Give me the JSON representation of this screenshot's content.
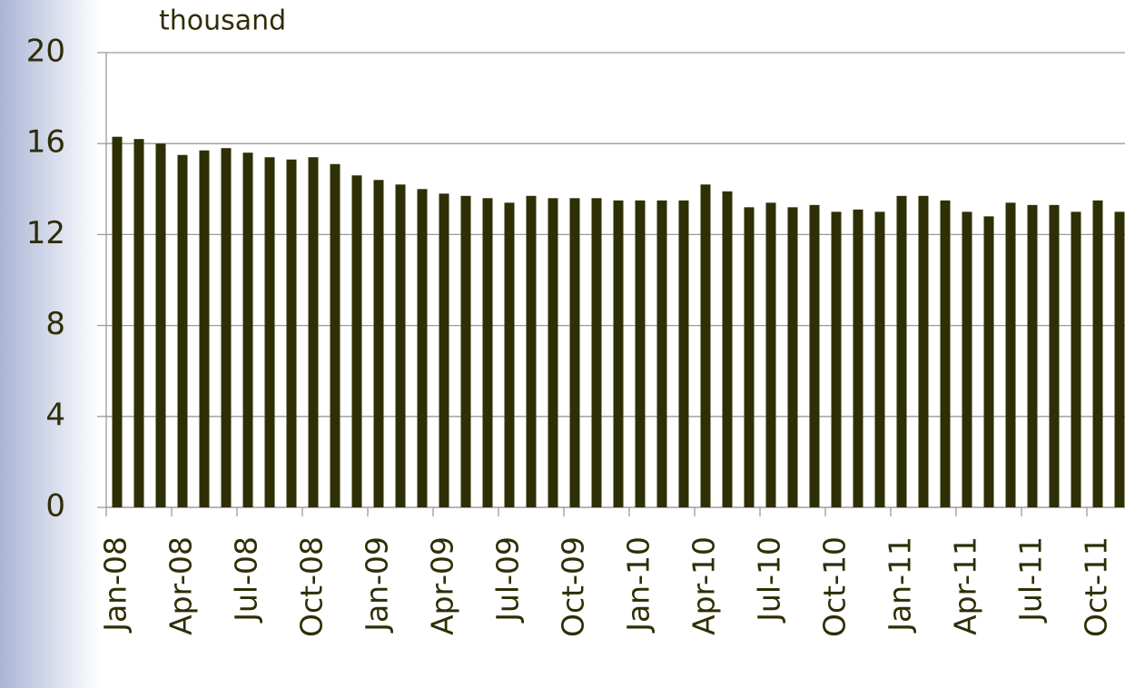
{
  "chart_data": {
    "type": "bar",
    "y_label": "thousand",
    "categories": [
      "Jan-08",
      null,
      null,
      "Apr-08",
      null,
      null,
      "Jul-08",
      null,
      null,
      "Oct-08",
      null,
      null,
      "Jan-09",
      null,
      null,
      "Apr-09",
      null,
      null,
      "Jul-09",
      null,
      null,
      "Oct-09",
      null,
      null,
      "Jan-10",
      null,
      null,
      "Apr-10",
      null,
      null,
      "Jul-10",
      null,
      null,
      "Oct-10",
      null,
      null,
      "Jan-11",
      null,
      null,
      "Apr-11",
      null,
      null,
      "Jul-11",
      null,
      null,
      "Oct-11",
      null
    ],
    "values": [
      16.3,
      16.2,
      16.0,
      15.5,
      15.7,
      15.8,
      15.6,
      15.4,
      15.3,
      15.4,
      15.1,
      14.6,
      14.4,
      14.2,
      14.0,
      13.8,
      13.7,
      13.6,
      13.4,
      13.7,
      13.6,
      13.6,
      13.6,
      13.5,
      13.5,
      13.5,
      13.5,
      14.2,
      13.9,
      13.2,
      13.4,
      13.2,
      13.3,
      13.0,
      13.1,
      13.0,
      13.7,
      13.7,
      13.5,
      13.0,
      12.8,
      13.4,
      13.3,
      13.3,
      13.0,
      13.5,
      13.0
    ],
    "color": "#2f2f05",
    "ylim": [
      0,
      20
    ],
    "yticks": [
      0,
      4,
      8,
      12,
      16,
      20
    ],
    "grid": true
  }
}
